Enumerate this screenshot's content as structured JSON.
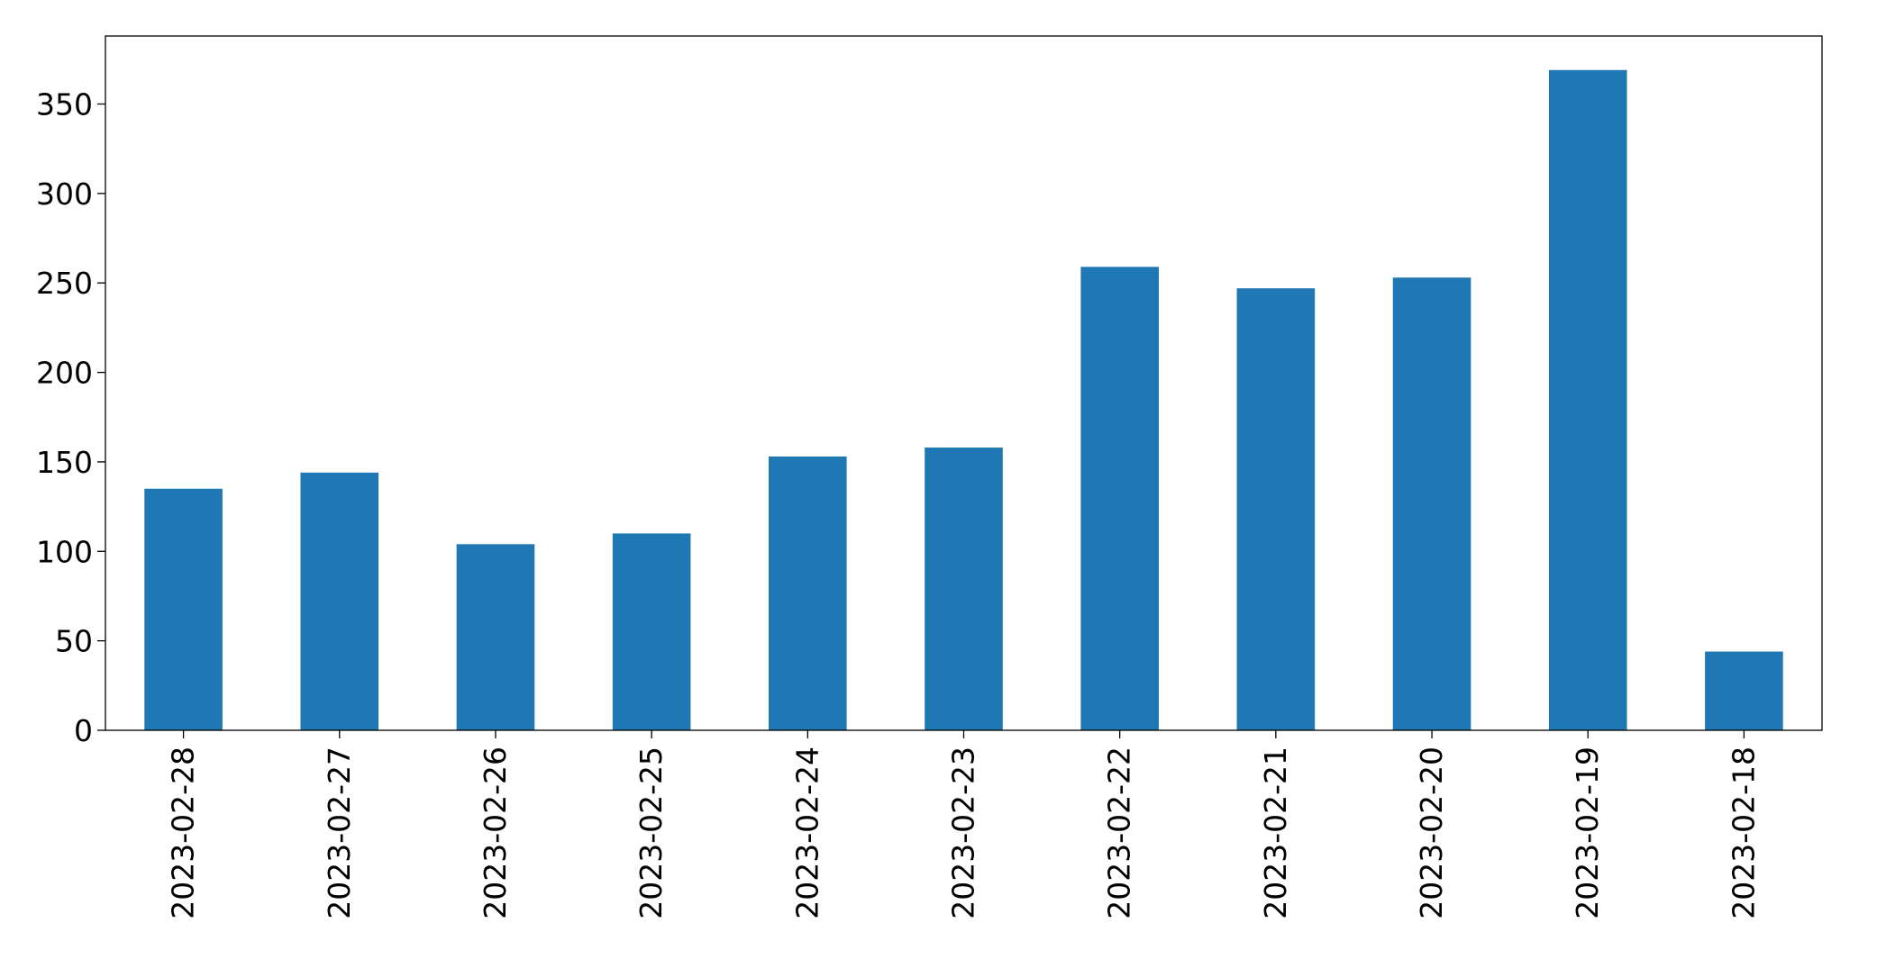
{
  "chart_data": {
    "type": "bar",
    "title": "",
    "xlabel": "",
    "ylabel": "",
    "categories": [
      "2023-02-28",
      "2023-02-27",
      "2023-02-26",
      "2023-02-25",
      "2023-02-24",
      "2023-02-23",
      "2023-02-22",
      "2023-02-21",
      "2023-02-20",
      "2023-02-19",
      "2023-02-18"
    ],
    "series": [
      {
        "values": [
          135,
          144,
          104,
          110,
          153,
          158,
          259,
          247,
          253,
          369,
          44
        ],
        "color": "#1f77b4"
      }
    ],
    "ylim": [
      0,
      388
    ],
    "yticks": [
      0,
      50,
      100,
      150,
      200,
      250,
      300,
      350
    ],
    "grid": false,
    "legend": "none"
  }
}
